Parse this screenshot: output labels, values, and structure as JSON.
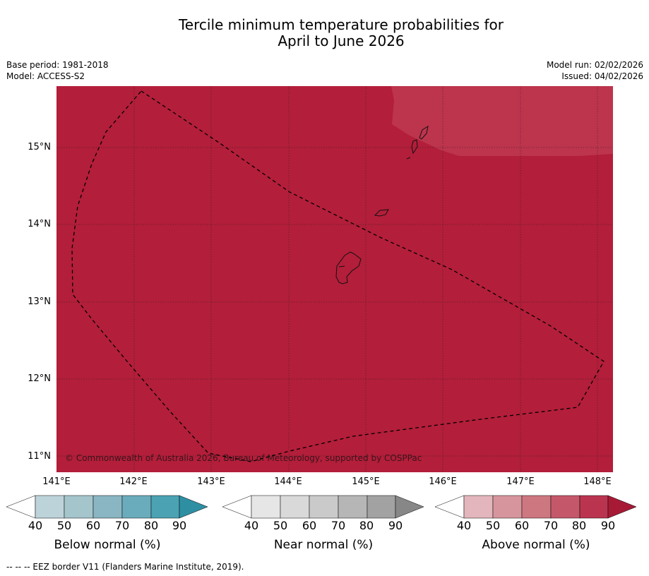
{
  "title": {
    "line1": "Tercile minimum temperature probabilities for",
    "line2": "April to June 2026"
  },
  "meta": {
    "base_period": "Base period: 1981-2018",
    "model": "Model: ACCESS-S2",
    "model_run": "Model run: 02/02/2026",
    "issued": "Issued: 04/02/2026"
  },
  "map": {
    "fill_color": "#b31e3a",
    "high_prob_color": "#bd344d",
    "copyright": "© Commonwealth of Australia 2026, Bureau of Meteorology, supported by COSPPac",
    "lat_labels": [
      "15°N",
      "14°N",
      "13°N",
      "12°N",
      "11°N"
    ],
    "lon_labels": [
      "141°E",
      "142°E",
      "143°E",
      "144°E",
      "145°E",
      "146°E",
      "147°E",
      "148°E"
    ]
  },
  "colorbars": [
    {
      "name": "below",
      "label": "Below normal (%)",
      "ticks": [
        "40",
        "50",
        "60",
        "70",
        "80",
        "90"
      ],
      "colors": [
        "#ffffff",
        "#bdd3da",
        "#a5c5cc",
        "#89b6c2",
        "#6aacbc",
        "#4ba2b2",
        "#2e8fa3"
      ]
    },
    {
      "name": "near",
      "label": "Near normal (%)",
      "ticks": [
        "40",
        "50",
        "60",
        "70",
        "80",
        "90"
      ],
      "colors": [
        "#ffffff",
        "#e6e6e6",
        "#d9d9d9",
        "#cacaca",
        "#b6b6b6",
        "#a2a2a2",
        "#878787"
      ]
    },
    {
      "name": "above",
      "label": "Above normal (%)",
      "ticks": [
        "40",
        "50",
        "60",
        "70",
        "80",
        "90"
      ],
      "colors": [
        "#ffffff",
        "#e2b6bc",
        "#d6959d",
        "#cd7780",
        "#c4586a",
        "#ba3450",
        "#a71a36"
      ]
    }
  ],
  "footnote": "--  --  -- EEZ border V11 (Flanders Marine Institute, 2019)."
}
